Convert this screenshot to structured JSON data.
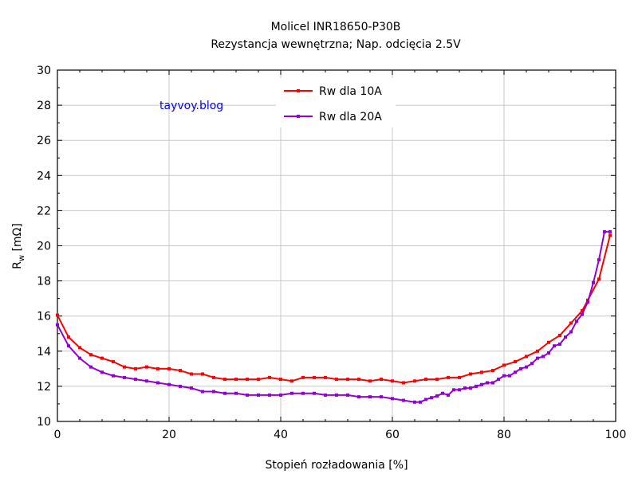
{
  "chart_data": {
    "type": "line",
    "title": "Molicel INR18650-P30B",
    "subtitle": "Rezystancja wewnętrzna; Nap. odcięcia 2.5V",
    "xlabel": "Stopień rozładowania [%]",
    "ylabel_main": "R",
    "ylabel_sub": "w",
    "ylabel_unit": " [mΩ]",
    "xlim": [
      0,
      100
    ],
    "ylim": [
      10,
      30
    ],
    "xticks": [
      0,
      20,
      40,
      60,
      80,
      100
    ],
    "yticks": [
      10,
      12,
      14,
      16,
      18,
      20,
      22,
      24,
      26,
      28,
      30
    ],
    "grid": true,
    "legend_position": "top-center",
    "watermark": "tayvoy.blog",
    "series": [
      {
        "name": "Rw dla 10A",
        "color": "#ff0000",
        "x": [
          0,
          2,
          4,
          6,
          8,
          10,
          12,
          14,
          16,
          18,
          20,
          22,
          24,
          26,
          28,
          30,
          32,
          34,
          36,
          38,
          40,
          42,
          44,
          46,
          48,
          50,
          52,
          54,
          56,
          58,
          60,
          62,
          64,
          66,
          68,
          70,
          72,
          74,
          76,
          78,
          80,
          82,
          84,
          86,
          88,
          90,
          92,
          94,
          95,
          97,
          99
        ],
        "y": [
          16.05,
          14.8,
          14.2,
          13.8,
          13.6,
          13.4,
          13.1,
          13.0,
          13.1,
          13.0,
          13.0,
          12.9,
          12.7,
          12.7,
          12.5,
          12.4,
          12.4,
          12.4,
          12.4,
          12.5,
          12.4,
          12.3,
          12.5,
          12.5,
          12.5,
          12.4,
          12.4,
          12.4,
          12.3,
          12.4,
          12.3,
          12.2,
          12.3,
          12.4,
          12.4,
          12.5,
          12.5,
          12.7,
          12.8,
          12.9,
          13.2,
          13.4,
          13.7,
          14.0,
          14.5,
          14.9,
          15.6,
          16.3,
          16.9,
          18.1,
          20.6
        ]
      },
      {
        "name": "Rw dla 20A",
        "color": "#9400d3",
        "x": [
          0,
          2,
          4,
          6,
          8,
          10,
          12,
          14,
          16,
          18,
          20,
          22,
          24,
          26,
          28,
          30,
          32,
          34,
          36,
          38,
          40,
          42,
          44,
          46,
          48,
          50,
          52,
          54,
          56,
          58,
          60,
          62,
          64,
          65,
          66,
          67,
          68,
          69,
          70,
          71,
          72,
          73,
          74,
          75,
          76,
          77,
          78,
          79,
          80,
          81,
          82,
          83,
          84,
          85,
          86,
          87,
          88,
          89,
          90,
          91,
          92,
          93,
          94,
          95,
          96,
          97,
          98,
          99
        ],
        "y": [
          15.5,
          14.3,
          13.6,
          13.1,
          12.8,
          12.6,
          12.5,
          12.4,
          12.3,
          12.2,
          12.1,
          12.0,
          11.9,
          11.7,
          11.7,
          11.6,
          11.6,
          11.5,
          11.5,
          11.5,
          11.5,
          11.6,
          11.6,
          11.6,
          11.5,
          11.5,
          11.5,
          11.4,
          11.4,
          11.4,
          11.3,
          11.2,
          11.1,
          11.1,
          11.25,
          11.35,
          11.45,
          11.6,
          11.5,
          11.8,
          11.8,
          11.9,
          11.9,
          12.0,
          12.1,
          12.2,
          12.2,
          12.4,
          12.6,
          12.6,
          12.8,
          13.0,
          13.1,
          13.3,
          13.6,
          13.7,
          13.9,
          14.3,
          14.4,
          14.8,
          15.1,
          15.7,
          16.1,
          16.8,
          17.9,
          19.2,
          20.8,
          20.8
        ]
      }
    ]
  }
}
